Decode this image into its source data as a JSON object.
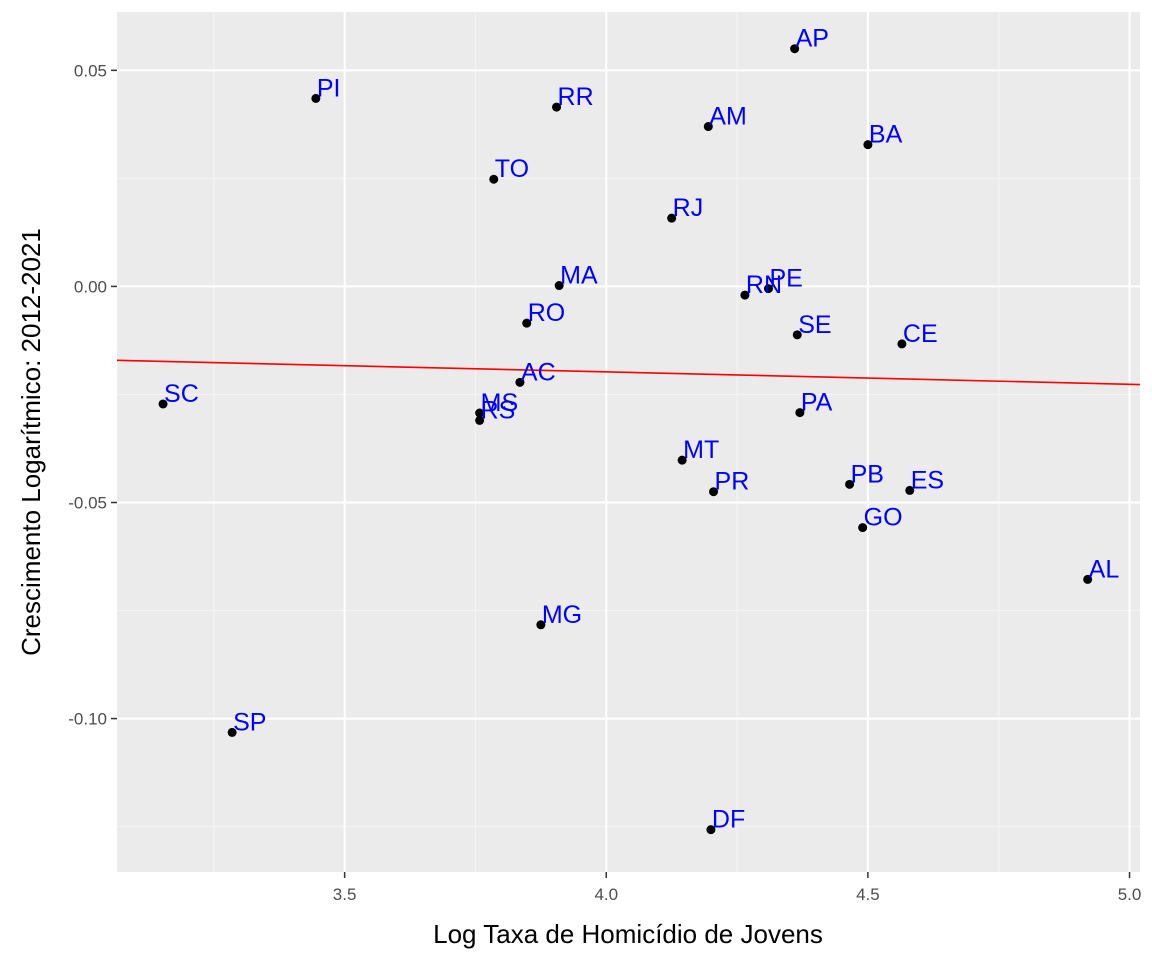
{
  "chart_data": {
    "type": "scatter",
    "title": "",
    "xlabel": "Log Taxa de Homicídio de Jovens",
    "ylabel": "Crescimento Logarítmico: 2012-2021",
    "xlim": [
      3.065,
      5.02
    ],
    "ylim": [
      -0.1355,
      0.0635
    ],
    "x_ticks": [
      3.5,
      4.0,
      4.5,
      5.0
    ],
    "x_tick_labels": [
      "3.5",
      "4.0",
      "4.5",
      "5.0"
    ],
    "y_ticks": [
      0.05,
      0.0,
      -0.05,
      -0.1
    ],
    "y_tick_labels": [
      "0.05",
      "0.00",
      "-0.05",
      "-0.10"
    ],
    "grid": true,
    "point_color": "#000000",
    "label_color": "#0000ff",
    "panel_color": "#ebebeb",
    "fit_line": {
      "color": "#ff0000",
      "x": [
        3.065,
        5.02
      ],
      "y": [
        -0.0171,
        -0.0227
      ]
    },
    "points": [
      {
        "label": "AP",
        "x": 4.36,
        "y": 0.055
      },
      {
        "label": "PI",
        "x": 3.445,
        "y": 0.0435
      },
      {
        "label": "RR",
        "x": 3.905,
        "y": 0.0415
      },
      {
        "label": "AM",
        "x": 4.195,
        "y": 0.037
      },
      {
        "label": "BA",
        "x": 4.5,
        "y": 0.0328
      },
      {
        "label": "TO",
        "x": 3.785,
        "y": 0.0248
      },
      {
        "label": "RJ",
        "x": 4.125,
        "y": 0.0158
      },
      {
        "label": "MA",
        "x": 3.91,
        "y": 0.0002
      },
      {
        "label": "PE",
        "x": 4.31,
        "y": -0.0005
      },
      {
        "label": "RN",
        "x": 4.265,
        "y": -0.002
      },
      {
        "label": "RO",
        "x": 3.848,
        "y": -0.0085
      },
      {
        "label": "SE",
        "x": 4.365,
        "y": -0.0112
      },
      {
        "label": "CE",
        "x": 4.565,
        "y": -0.0133
      },
      {
        "label": "AC",
        "x": 3.835,
        "y": -0.0222
      },
      {
        "label": "SC",
        "x": 3.153,
        "y": -0.0272
      },
      {
        "label": "PA",
        "x": 4.37,
        "y": -0.0292
      },
      {
        "label": "MS",
        "x": 3.758,
        "y": -0.0293
      },
      {
        "label": "RS",
        "x": 3.758,
        "y": -0.031
      },
      {
        "label": "MT",
        "x": 4.145,
        "y": -0.0402
      },
      {
        "label": "PB",
        "x": 4.465,
        "y": -0.0458
      },
      {
        "label": "ES",
        "x": 4.58,
        "y": -0.0472
      },
      {
        "label": "PR",
        "x": 4.205,
        "y": -0.0475
      },
      {
        "label": "GO",
        "x": 4.49,
        "y": -0.0558
      },
      {
        "label": "AL",
        "x": 4.92,
        "y": -0.0678
      },
      {
        "label": "MG",
        "x": 3.875,
        "y": -0.0783
      },
      {
        "label": "SP",
        "x": 3.285,
        "y": -0.1032
      },
      {
        "label": "DF",
        "x": 4.2,
        "y": -0.1257
      }
    ]
  }
}
